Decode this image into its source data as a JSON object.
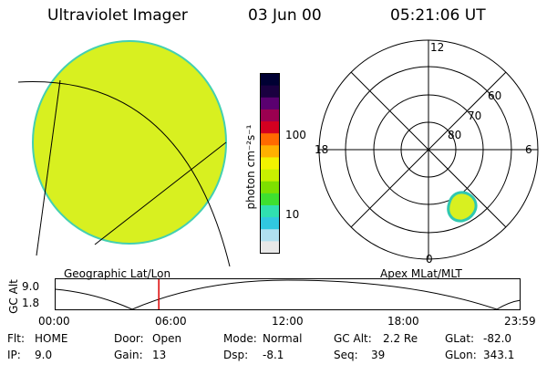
{
  "header": {
    "instrument": "Ultraviolet Imager",
    "date": "03 Jun 00",
    "time": "05:21:06 UT"
  },
  "left_panel": {
    "caption": "Geographic Lat/Lon"
  },
  "colorbar": {
    "unit_label": "photon cm⁻²s⁻¹",
    "ticks": [
      "100",
      "10"
    ],
    "scale": "log",
    "colors": [
      "#000033",
      "#1a0040",
      "#5a0070",
      "#9b0050",
      "#d40020",
      "#ff6a00",
      "#ffb000",
      "#f2f200",
      "#c8f000",
      "#7ee000",
      "#3ee030",
      "#30e0b0",
      "#30c8e0",
      "#b0e0f0",
      "#e8e8e8"
    ]
  },
  "right_panel": {
    "caption": "Apex MLat/MLT",
    "mlt_labels": {
      "top": "12",
      "left": "18",
      "right": "6",
      "bottom": "0"
    },
    "lat_labels": [
      "60",
      "70",
      "80"
    ]
  },
  "timeline": {
    "ylabel": "GC Alt",
    "yticks": [
      "9.0",
      "1.8"
    ],
    "xticks": [
      "00:00",
      "06:00",
      "12:00",
      "18:00",
      "23:59"
    ],
    "current_time_hours": 5.35,
    "marker_color": "#dd0000"
  },
  "info": {
    "flt_label": "Flt:",
    "flt_value": "HOME",
    "ip_label": "IP:",
    "ip_value": "9.0",
    "door_label": "Door:",
    "door_value": "Open",
    "gain_label": "Gain:",
    "gain_value": "13",
    "mode_label": "Mode:",
    "mode_value": "Normal",
    "dsp_label": "Dsp:",
    "dsp_value": "-8.1",
    "gcalt_label": "GC Alt:",
    "gcalt_value": "2.2 Re",
    "seq_label": "Seq:",
    "seq_value": "39",
    "glat_label": "GLat:",
    "glat_value": "-82.0",
    "glon_label": "GLon:",
    "glon_value": "343.1"
  }
}
